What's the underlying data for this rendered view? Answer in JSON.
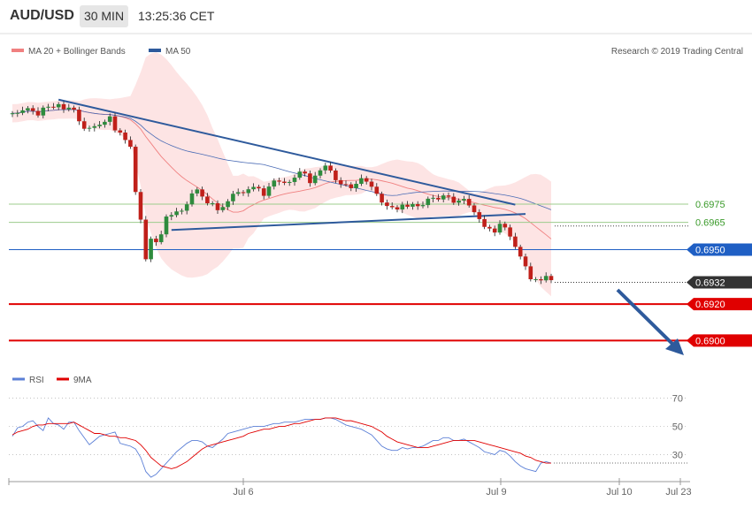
{
  "header": {
    "symbol": "AUD/USD",
    "timeframe": "30 MIN",
    "time": "13:25:36 CET"
  },
  "legend": {
    "main": [
      {
        "label": "MA 20 + Bollinger Bands",
        "color": "#f08080"
      },
      {
        "label": "MA 50",
        "color": "#2e5a9c"
      }
    ],
    "rsi": [
      {
        "label": "RSI",
        "color": "#5b7fd6"
      },
      {
        "label": "9MA",
        "color": "#e00000"
      }
    ]
  },
  "copyright": "Research © 2019 Trading Central",
  "colors": {
    "up": "#2e8b3d",
    "down": "#c0201a",
    "trend": "#2e5a9c",
    "bb_fill": "#fde4e4",
    "ma20": "#f08080",
    "ma50": "#4a6bb5",
    "support_red": "#e00000",
    "pivot_blue": "#1f5fc4",
    "green_line": "#9ccc8c"
  },
  "chart_data": [
    {
      "type": "candlestick",
      "title": "AUD/USD 30 MIN",
      "x_tick_labels": [
        "Jul 6",
        "Jul 9",
        "Jul 10",
        "Jul 23"
      ],
      "ylim": [
        0.6888,
        0.7046
      ],
      "levels": [
        {
          "value": 0.6975,
          "label": "0.6975",
          "style": "green-line"
        },
        {
          "value": 0.6965,
          "label": "0.6965",
          "style": "green-line"
        },
        {
          "value": 0.695,
          "label": "0.6950",
          "style": "blue-tag"
        },
        {
          "value": 0.6932,
          "label": "0.6932",
          "style": "dark-tag"
        },
        {
          "value": 0.692,
          "label": "0.6920",
          "style": "red-tag"
        },
        {
          "value": 0.69,
          "label": "0.6900",
          "style": "red-tag"
        }
      ],
      "close": [
        0.7025,
        0.70252,
        0.70266,
        0.70278,
        0.70263,
        0.70238,
        0.70281,
        0.70286,
        0.70283,
        0.703,
        0.70272,
        0.70281,
        0.7027,
        0.70206,
        0.70165,
        0.7017,
        0.70179,
        0.70187,
        0.70203,
        0.70233,
        0.70156,
        0.70144,
        0.70103,
        0.70066,
        0.69817,
        0.69665,
        0.69447,
        0.6956,
        0.69541,
        0.69584,
        0.69682,
        0.6969,
        0.6971,
        0.69714,
        0.69749,
        0.69809,
        0.69831,
        0.69792,
        0.69755,
        0.69755,
        0.69717,
        0.69734,
        0.69766,
        0.69807,
        0.69816,
        0.69811,
        0.69832,
        0.69845,
        0.69837,
        0.69796,
        0.69847,
        0.6988,
        0.69874,
        0.69867,
        0.69872,
        0.69896,
        0.69929,
        0.69919,
        0.69866,
        0.69907,
        0.69936,
        0.69962,
        0.69935,
        0.69882,
        0.6986,
        0.69859,
        0.69838,
        0.69862,
        0.69893,
        0.69874,
        0.69846,
        0.69807,
        0.69759,
        0.6974,
        0.69733,
        0.69721,
        0.69747,
        0.69736,
        0.6975,
        0.69739,
        0.69745,
        0.6978,
        0.69785,
        0.69776,
        0.69798,
        0.69791,
        0.69758,
        0.6977,
        0.69779,
        0.69743,
        0.69706,
        0.69668,
        0.69625,
        0.69616,
        0.69594,
        0.69642,
        0.69622,
        0.69572,
        0.69515,
        0.69462,
        0.69408,
        0.69337,
        0.69337,
        0.69331,
        0.69355,
        0.69332
      ],
      "ohlc_note": "open of each candle equals previous close",
      "rsi": {
        "name": "RSI",
        "ticks": [
          70,
          50,
          30
        ],
        "values": [
          43,
          49,
          50,
          53,
          54,
          50,
          47,
          56,
          52,
          51,
          48,
          53,
          53,
          47,
          42,
          37,
          40,
          43,
          44,
          45,
          46,
          38,
          37,
          36,
          34,
          28,
          18,
          14,
          16,
          20,
          24,
          28,
          32,
          35,
          38,
          40,
          40,
          39,
          36,
          35,
          38,
          41,
          45,
          46,
          47,
          48,
          49,
          50,
          50,
          50,
          51,
          52,
          52,
          53,
          53,
          53,
          54,
          55,
          55,
          55,
          55,
          56,
          56,
          55,
          53,
          51,
          50,
          49,
          48,
          46,
          44,
          40,
          36,
          34,
          33,
          33,
          35,
          34,
          35,
          35,
          36,
          38,
          40,
          40,
          42,
          42,
          40,
          40,
          41,
          39,
          37,
          35,
          32,
          31,
          30,
          33,
          32,
          29,
          25,
          22,
          20,
          19,
          18,
          24,
          25,
          24
        ],
        "ma9": [
          44,
          46,
          47,
          48,
          50,
          51,
          51,
          52,
          52,
          52,
          52,
          52,
          53,
          51,
          49,
          47,
          45,
          45,
          44,
          43,
          43,
          42,
          42,
          41,
          40,
          37,
          33,
          28,
          25,
          22,
          21,
          20,
          21,
          23,
          25,
          28,
          31,
          34,
          36,
          37,
          38,
          39,
          40,
          41,
          42,
          43,
          45,
          46,
          47,
          48,
          48,
          49,
          50,
          50,
          51,
          52,
          52,
          53,
          54,
          55,
          55,
          56,
          56,
          56,
          55,
          54,
          54,
          53,
          52,
          51,
          50,
          48,
          46,
          43,
          41,
          39,
          38,
          37,
          36,
          35,
          35,
          35,
          36,
          37,
          38,
          39,
          40,
          40,
          40,
          40,
          40,
          39,
          38,
          37,
          36,
          35,
          34,
          33,
          32,
          31,
          29,
          28,
          26,
          25,
          24,
          24
        ]
      }
    }
  ]
}
